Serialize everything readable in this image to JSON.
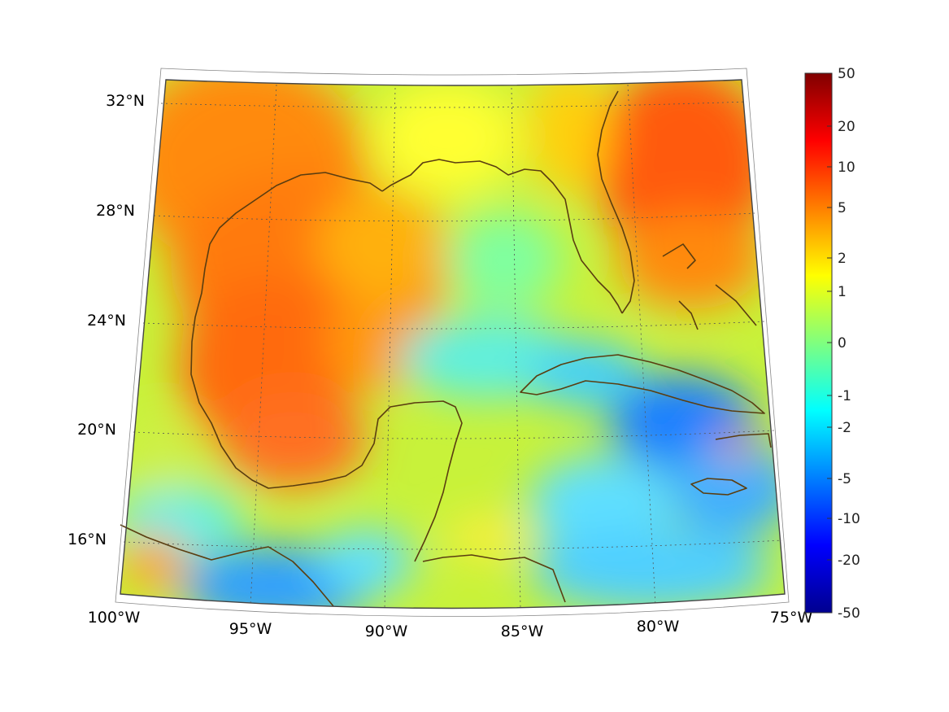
{
  "map": {
    "lon_labels": [
      "100°W",
      "95°W",
      "90°W",
      "85°W",
      "80°W",
      "75°W"
    ],
    "lat_labels": [
      "32°N",
      "28°N",
      "24°N",
      "20°N",
      "16°N"
    ]
  },
  "colorbar": {
    "ticks": [
      "50",
      "20",
      "10",
      "5",
      "2",
      "1",
      "0",
      "-1",
      "-2",
      "-5",
      "-10",
      "-20",
      "-50"
    ],
    "colormap": "jet",
    "range": [
      -50,
      50
    ]
  },
  "colors": {
    "coastline": "#5a3d10",
    "grid": "#555555",
    "frame": "#444444"
  }
}
